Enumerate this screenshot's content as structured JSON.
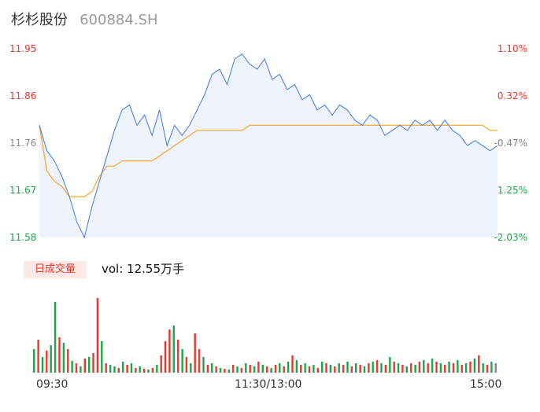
{
  "header": {
    "name": "杉杉股份",
    "code": "600884.SH"
  },
  "price_axis": {
    "labels": [
      "11.95",
      "11.86",
      "11.76",
      "11.67",
      "11.58"
    ],
    "values": [
      11.95,
      11.86,
      11.76,
      11.67,
      11.58
    ]
  },
  "pct_axis": {
    "labels": [
      "1.10%",
      "0.32%",
      "-0.47%",
      "-1.25%",
      "-2.03%"
    ]
  },
  "volume": {
    "tab_label": "日成交量",
    "text": "vol: 12.55万手"
  },
  "time_axis": {
    "labels": [
      "09:30",
      "11:30/13:00",
      "15:00"
    ]
  },
  "colors": {
    "up": "#e8392c",
    "down": "#1aa74b",
    "flat": "#888888",
    "price_line": "#3d7be0",
    "avg_line": "#f5a623",
    "area_fill": "#eef3fd"
  },
  "chart_data": [
    {
      "type": "line",
      "title": "",
      "ylim": [
        11.58,
        11.95
      ],
      "x_ticks": [
        "09:30",
        "11:30/13:00",
        "15:00"
      ],
      "series": [
        {
          "name": "price",
          "values": [
            11.8,
            11.75,
            11.73,
            11.7,
            11.66,
            11.61,
            11.58,
            11.64,
            11.69,
            11.74,
            11.79,
            11.83,
            11.84,
            11.8,
            11.82,
            11.78,
            11.83,
            11.76,
            11.8,
            11.78,
            11.8,
            11.83,
            11.86,
            11.9,
            11.91,
            11.88,
            11.93,
            11.94,
            11.92,
            11.91,
            11.93,
            11.89,
            11.9,
            11.87,
            11.88,
            11.85,
            11.86,
            11.83,
            11.84,
            11.82,
            11.84,
            11.83,
            11.81,
            11.8,
            11.82,
            11.81,
            11.78,
            11.79,
            11.8,
            11.79,
            11.81,
            11.8,
            11.81,
            11.79,
            11.81,
            11.79,
            11.78,
            11.76,
            11.77,
            11.76,
            11.75,
            11.76
          ]
        },
        {
          "name": "average",
          "values": [
            11.8,
            11.71,
            11.69,
            11.68,
            11.66,
            11.66,
            11.66,
            11.67,
            11.7,
            11.72,
            11.72,
            11.73,
            11.73,
            11.73,
            11.73,
            11.73,
            11.74,
            11.75,
            11.76,
            11.77,
            11.78,
            11.79,
            11.79,
            11.79,
            11.79,
            11.79,
            11.79,
            11.79,
            11.8,
            11.8,
            11.8,
            11.8,
            11.8,
            11.8,
            11.8,
            11.8,
            11.8,
            11.8,
            11.8,
            11.8,
            11.8,
            11.8,
            11.8,
            11.8,
            11.8,
            11.8,
            11.8,
            11.8,
            11.8,
            11.8,
            11.8,
            11.8,
            11.8,
            11.8,
            11.8,
            11.8,
            11.8,
            11.8,
            11.8,
            11.8,
            11.79,
            11.79
          ]
        }
      ]
    },
    {
      "type": "bar",
      "title": "日成交量",
      "values": [
        30,
        42,
        20,
        28,
        35,
        90,
        45,
        38,
        30,
        15,
        12,
        8,
        18,
        20,
        25,
        95,
        40,
        12,
        10,
        8,
        6,
        14,
        10,
        12,
        6,
        8,
        5,
        4,
        6,
        10,
        22,
        40,
        55,
        60,
        42,
        30,
        20,
        12,
        50,
        30,
        20,
        10,
        12,
        8,
        6,
        5,
        4,
        10,
        8,
        6,
        12,
        10,
        8,
        14,
        10,
        8,
        6,
        10,
        12,
        8,
        14,
        22,
        16,
        10,
        12,
        8,
        10,
        6,
        14,
        12,
        10,
        8,
        12,
        10,
        14,
        8,
        12,
        10,
        8,
        12,
        14,
        16,
        12,
        10,
        20,
        14,
        12,
        10,
        8,
        12,
        10,
        14,
        16,
        12,
        18,
        14,
        12,
        10,
        14,
        12,
        16,
        10,
        12,
        14,
        18,
        22,
        12,
        10,
        14,
        12
      ],
      "colors": [
        "down",
        "up",
        "down",
        "up",
        "down",
        "down",
        "up",
        "down",
        "up",
        "down",
        "up",
        "down",
        "up",
        "down",
        "up",
        "up",
        "down",
        "up",
        "down",
        "down",
        "up",
        "down",
        "up",
        "down",
        "up",
        "down",
        "up",
        "down",
        "up",
        "down",
        "up",
        "up",
        "up",
        "down",
        "up",
        "down",
        "up",
        "down",
        "up",
        "up",
        "down",
        "up",
        "down",
        "up",
        "down",
        "up",
        "down",
        "up",
        "down",
        "up",
        "down",
        "up",
        "down",
        "up",
        "down",
        "up",
        "down",
        "up",
        "down",
        "up",
        "down",
        "up",
        "down",
        "up",
        "down",
        "up",
        "down",
        "up",
        "down",
        "up",
        "down",
        "up",
        "down",
        "up",
        "down",
        "up",
        "down",
        "up",
        "down",
        "up",
        "down",
        "up",
        "down",
        "up",
        "down",
        "up",
        "down",
        "up",
        "down",
        "up",
        "down",
        "up",
        "down",
        "up",
        "down",
        "up",
        "down",
        "up",
        "down",
        "up",
        "down",
        "up",
        "down",
        "up",
        "down",
        "up",
        "down",
        "up",
        "down",
        "flat"
      ]
    }
  ]
}
